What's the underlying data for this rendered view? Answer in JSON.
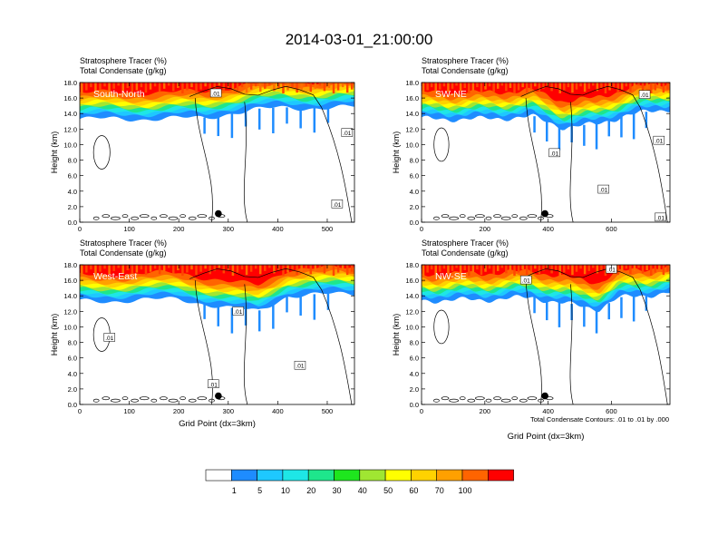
{
  "figure": {
    "title": "2014-03-01_21:00:00",
    "footnote": "Total Condensate Contours: .01 to .01 by .000"
  },
  "colorbar": {
    "colors": [
      "#ffffff",
      "#1e8cff",
      "#1ec8ff",
      "#1ee6e6",
      "#1ee68c",
      "#1ee61e",
      "#a0e632",
      "#ffff00",
      "#ffd200",
      "#ffa000",
      "#ff6400",
      "#ff0000"
    ],
    "labels": [
      "1",
      "5",
      "10",
      "20",
      "30",
      "40",
      "50",
      "60",
      "70",
      "100"
    ]
  },
  "chart_data": [
    {
      "type": "heatmap",
      "name": "South-North",
      "title_line1": "Stratosphere Tracer   (%)",
      "title_line2": "Total Condensate   (g/kg)",
      "ylabel": "Height (km)",
      "xlabel": "",
      "xlim": [
        0,
        555
      ],
      "ylim": [
        0,
        18
      ],
      "xticks": [
        0,
        100,
        200,
        300,
        400,
        500
      ],
      "yticks": [
        "0.0",
        "2.0",
        "4.0",
        "6.0",
        "8.0",
        "10.0",
        "12.0",
        "14.0",
        "16.0",
        "18.0"
      ],
      "contour_labels": [
        {
          "text": ".01",
          "x": 275,
          "y": 16.6
        },
        {
          "text": ".01",
          "x": 540,
          "y": 11.5
        },
        {
          "text": ".01",
          "x": 520,
          "y": 2.3
        }
      ],
      "marker": {
        "x": 280,
        "y": 1.1
      },
      "tracer_profile": {
        "x": [
          0,
          100,
          200,
          255,
          300,
          350,
          400,
          450,
          500,
          555
        ],
        "top_5pct_km": [
          13.9,
          13.9,
          14.0,
          14.0,
          14.6,
          15.1,
          15.3,
          15.3,
          15.4,
          15.4
        ]
      }
    },
    {
      "type": "heatmap",
      "name": "SW-NE",
      "title_line1": "Stratosphere Tracer   (%)",
      "title_line2": "Total Condensate   (g/kg)",
      "ylabel": "Height (km)",
      "xlabel": "",
      "xlim": [
        0,
        785
      ],
      "ylim": [
        0,
        18
      ],
      "xticks": [
        0,
        200,
        400,
        600
      ],
      "yticks": [
        "0.0",
        "2.0",
        "4.0",
        "6.0",
        "8.0",
        "10.0",
        "12.0",
        "14.0",
        "16.0",
        "18.0"
      ],
      "contour_labels": [
        {
          "text": ".01",
          "x": 705,
          "y": 16.4
        },
        {
          "text": ".01",
          "x": 420,
          "y": 8.9
        },
        {
          "text": ".01",
          "x": 750,
          "y": 10.5
        },
        {
          "text": ".01",
          "x": 575,
          "y": 4.2
        },
        {
          "text": ".01",
          "x": 755,
          "y": 0.6
        }
      ],
      "marker": {
        "x": 390,
        "y": 1.1
      },
      "tracer_profile": {
        "x": [
          0,
          200,
          350,
          450,
          550,
          650,
          785
        ],
        "top_5pct_km": [
          13.9,
          13.9,
          14.2,
          12.8,
          13.2,
          14.4,
          15.2
        ]
      }
    },
    {
      "type": "heatmap",
      "name": "West-East",
      "title_line1": "Stratosphere Tracer   (%)",
      "title_line2": "Total Condensate   (g/kg)",
      "ylabel": "Height (km)",
      "xlabel": "Grid Point (dx=3km)",
      "xlim": [
        0,
        555
      ],
      "ylim": [
        0,
        18
      ],
      "xticks": [
        0,
        100,
        200,
        300,
        400,
        500
      ],
      "yticks": [
        "0.0",
        "2.0",
        "4.0",
        "6.0",
        "8.0",
        "10.0",
        "12.0",
        "14.0",
        "16.0",
        "18.0"
      ],
      "contour_labels": [
        {
          "text": ".01",
          "x": 320,
          "y": 12.0
        },
        {
          "text": ".01",
          "x": 60,
          "y": 8.6
        },
        {
          "text": ".01",
          "x": 445,
          "y": 5.0
        },
        {
          "text": ".01",
          "x": 270,
          "y": 2.6
        }
      ],
      "marker": {
        "x": 280,
        "y": 1.1
      },
      "tracer_profile": {
        "x": [
          0,
          100,
          200,
          300,
          360,
          420,
          555
        ],
        "top_5pct_km": [
          13.9,
          14.0,
          14.2,
          13.0,
          12.6,
          14.6,
          14.9
        ]
      }
    },
    {
      "type": "heatmap",
      "name": "NW-SE",
      "title_line1": "",
      "title_line2": "",
      "title_top_line1": "Stratosphere Tracer   (%)",
      "title_top_line2": "Total Condensate   (g/kg)",
      "ylabel": "Height (km)",
      "xlabel": "Grid Point (dx=3km)",
      "xlim": [
        0,
        785
      ],
      "ylim": [
        0,
        18
      ],
      "xticks": [
        0,
        200,
        400,
        600
      ],
      "yticks": [
        "0.0",
        "2.0",
        "4.0",
        "6.0",
        "8.0",
        "10.0",
        "12.0",
        "14.0",
        "16.0",
        "18.0"
      ],
      "contour_labels": [
        {
          "text": ".01",
          "x": 330,
          "y": 16.0
        },
        {
          "text": ".01",
          "x": 600,
          "y": 17.4
        }
      ],
      "marker": {
        "x": 390,
        "y": 1.1
      },
      "tracer_profile": {
        "x": [
          0,
          200,
          350,
          450,
          560,
          620,
          785
        ],
        "top_5pct_km": [
          14.0,
          14.1,
          14.4,
          13.6,
          12.9,
          14.3,
          15.0
        ]
      }
    }
  ]
}
